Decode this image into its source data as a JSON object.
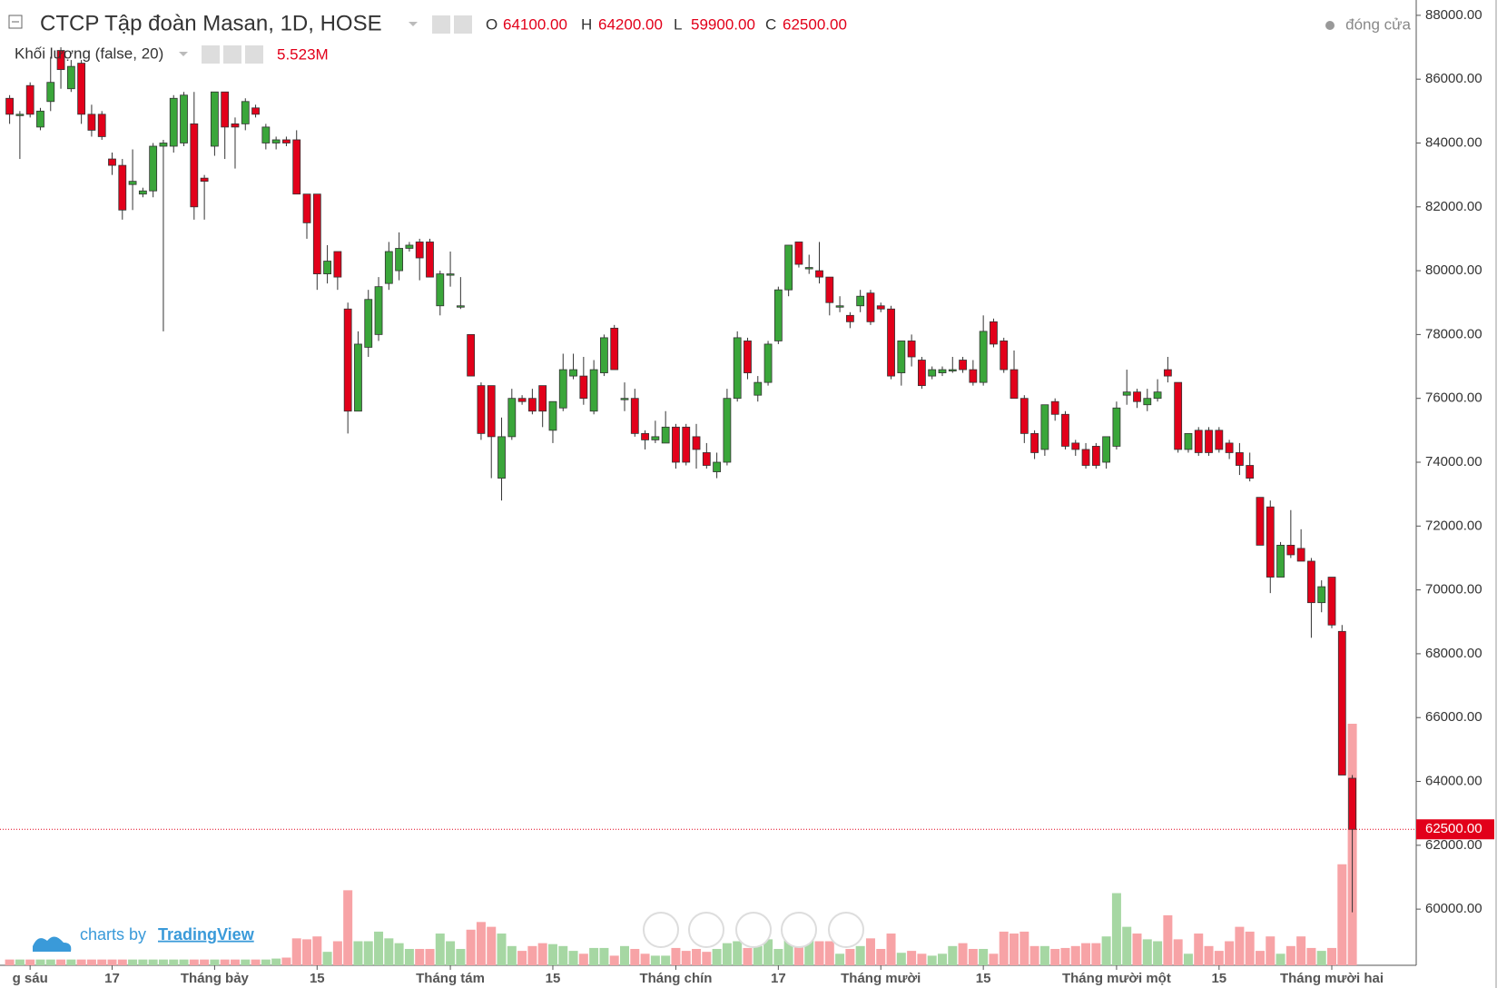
{
  "header": {
    "title": "CTCP Tập đoàn Masan, 1D, HOSE",
    "ohlc": [
      {
        "key": "O",
        "label": "64100.00"
      },
      {
        "key": "H",
        "label": "64200.00"
      },
      {
        "key": "L",
        "label": "59900.00"
      },
      {
        "key": "C",
        "label": "62500.00"
      }
    ],
    "volume_title": "Khối lượng (false, 20)",
    "volume_last": "5.523M",
    "status": "đóng cửa"
  },
  "branding": {
    "prefix": "charts by",
    "name": "TradingView"
  },
  "chart_data": {
    "type": "candlestick",
    "categories": [
      null,
      null,
      "g sáu",
      null,
      null,
      null,
      null,
      null,
      null,
      null,
      "17",
      null,
      null,
      null,
      null,
      null,
      null,
      null,
      null,
      null,
      "Tháng bảy",
      null,
      null,
      null,
      null,
      null,
      null,
      null,
      null,
      null,
      "15",
      null,
      null,
      null,
      null,
      null,
      null,
      null,
      null,
      null,
      null,
      null,
      null,
      "Tháng tám",
      null,
      null,
      null,
      null,
      null,
      null,
      null,
      null,
      null,
      "15",
      null,
      null,
      null,
      null,
      null,
      null,
      null,
      null,
      null,
      null,
      null,
      "Tháng chín",
      null,
      null,
      null,
      null,
      null,
      null,
      null,
      null,
      null,
      "17",
      null,
      null,
      null,
      null,
      null,
      null,
      null,
      null,
      null,
      "Tháng mười",
      null,
      null,
      null,
      null,
      null,
      null,
      null,
      null,
      null,
      "15",
      null,
      null,
      null,
      null,
      null,
      null,
      null,
      null,
      null,
      null,
      null,
      null,
      "Tháng mười một",
      null,
      null,
      null,
      null,
      null,
      null,
      null,
      null,
      null,
      "15",
      null,
      null,
      null,
      null,
      null,
      null,
      null,
      null,
      null,
      null,
      "Tháng mười hai",
      null,
      null
    ],
    "open": [
      85400,
      84900,
      85800,
      84500,
      85300,
      86900,
      85700,
      86500,
      84900,
      84900,
      83500,
      83300,
      82700,
      82400,
      82500,
      83900,
      83900,
      84000,
      84600,
      82900,
      83900,
      85600,
      84600,
      84600,
      85100,
      84000,
      84000,
      84100,
      84100,
      82400,
      82400,
      79900,
      80600,
      78800,
      75600,
      77600,
      78000,
      79600,
      80000,
      80700,
      80900,
      80900,
      78900,
      79900,
      78900,
      78000,
      76400,
      76400,
      73500,
      74800,
      76000,
      76000,
      76400,
      75000,
      75700,
      76700,
      76700,
      75600,
      76800,
      78200,
      76000,
      76000,
      74900,
      74700,
      74600,
      75100,
      75100,
      74800,
      74300,
      73700,
      74000,
      76000,
      77800,
      76100,
      76500,
      77800,
      79400,
      80900,
      80100,
      80000,
      79800,
      78900,
      78600,
      78900,
      79300,
      78900,
      78800,
      76800,
      77800,
      77200,
      76700,
      76800,
      76900,
      77200,
      76900,
      76500,
      78400,
      77800,
      76900,
      76000,
      74900,
      74400,
      75900,
      75500,
      74600,
      74400,
      74500,
      74000,
      74500,
      76100,
      76200,
      75800,
      76000,
      76900,
      76500,
      74400,
      75000,
      75000,
      75000,
      74600,
      74300,
      73900,
      72900,
      72600,
      70400,
      71400,
      71300,
      70900,
      69600,
      70400,
      68700,
      64100
    ],
    "high": [
      85500,
      85000,
      85900,
      85100,
      86700,
      87000,
      86600,
      86600,
      85200,
      85000,
      83700,
      83500,
      83800,
      82600,
      84000,
      84100,
      85500,
      85600,
      85600,
      83000,
      85600,
      85600,
      84800,
      85400,
      85200,
      84600,
      84200,
      84200,
      84400,
      82400,
      82400,
      80800,
      80600,
      79000,
      78100,
      79400,
      79800,
      80900,
      81200,
      80900,
      81000,
      81000,
      80000,
      80600,
      79800,
      78000,
      76500,
      76400,
      75400,
      76300,
      76100,
      76300,
      76400,
      75900,
      77400,
      77400,
      77300,
      77200,
      78000,
      78300,
      76500,
      76300,
      75000,
      75300,
      75600,
      75200,
      75200,
      75200,
      74600,
      74300,
      76300,
      78100,
      77900,
      76700,
      77800,
      79500,
      80800,
      80900,
      80500,
      80900,
      79800,
      79200,
      78700,
      79400,
      79400,
      79000,
      78900,
      77800,
      78000,
      77300,
      77000,
      77000,
      77300,
      77300,
      77200,
      78600,
      78500,
      77900,
      77500,
      76100,
      75000,
      75800,
      76000,
      75600,
      74700,
      74600,
      74600,
      74800,
      75900,
      76900,
      76300,
      76300,
      76600,
      77300,
      76500,
      74900,
      75100,
      75100,
      75100,
      74700,
      74600,
      74300,
      72900,
      72800,
      71500,
      72500,
      71900,
      71000,
      70300,
      70400,
      68900,
      64200
    ],
    "low": [
      84600,
      83500,
      84800,
      84400,
      85000,
      85700,
      85600,
      84600,
      84200,
      84100,
      83000,
      81600,
      81900,
      82300,
      82300,
      78100,
      83700,
      83900,
      81600,
      81600,
      83600,
      83500,
      83200,
      84400,
      84800,
      83800,
      83800,
      83900,
      82400,
      81000,
      79400,
      79600,
      79400,
      74900,
      75600,
      77300,
      77800,
      79400,
      79700,
      80600,
      79700,
      79800,
      78600,
      79500,
      78800,
      76700,
      74700,
      73500,
      72800,
      74700,
      75800,
      75500,
      75100,
      74600,
      75600,
      76600,
      75800,
      75500,
      76700,
      76900,
      75600,
      74800,
      74400,
      74600,
      74600,
      73800,
      73900,
      73800,
      73800,
      73500,
      73900,
      75900,
      76600,
      75900,
      76400,
      77700,
      79200,
      80100,
      79900,
      79600,
      78600,
      78700,
      78200,
      78700,
      78300,
      78700,
      76600,
      76400,
      77000,
      76300,
      76600,
      76700,
      76800,
      76800,
      76400,
      76400,
      77600,
      76800,
      76000,
      74600,
      74100,
      74200,
      75300,
      74400,
      74200,
      73800,
      73800,
      73800,
      74400,
      75800,
      75700,
      75600,
      75900,
      76500,
      74300,
      74300,
      74200,
      74200,
      74300,
      74100,
      73600,
      73400,
      71400,
      69900,
      70400,
      71000,
      70900,
      68500,
      69300,
      68800,
      64200,
      59900
    ],
    "close": [
      84900,
      84900,
      84900,
      85000,
      85900,
      86300,
      86400,
      84900,
      84400,
      84200,
      83300,
      81900,
      82800,
      82500,
      83900,
      84000,
      85400,
      85500,
      82000,
      82800,
      85600,
      84500,
      84500,
      85300,
      84900,
      84500,
      84100,
      84000,
      82400,
      81500,
      79900,
      80300,
      79800,
      75600,
      77700,
      79100,
      79500,
      80600,
      80700,
      80800,
      80400,
      79800,
      79900,
      79900,
      78900,
      76700,
      74900,
      74800,
      74800,
      76000,
      75900,
      75600,
      75600,
      75900,
      76900,
      76900,
      76000,
      76900,
      77900,
      76900,
      76000,
      74900,
      74700,
      74800,
      75100,
      74000,
      74000,
      74400,
      73900,
      74000,
      76000,
      77900,
      76800,
      76500,
      77700,
      79400,
      80800,
      80200,
      80100,
      79800,
      79000,
      78900,
      78400,
      79200,
      78400,
      78800,
      76700,
      77800,
      77300,
      76400,
      76900,
      76900,
      76900,
      76900,
      76500,
      78100,
      77700,
      76900,
      76000,
      74900,
      74300,
      75800,
      75500,
      74500,
      74400,
      73900,
      73900,
      74800,
      75700,
      76200,
      75900,
      76000,
      76200,
      76700,
      74400,
      74900,
      74300,
      74300,
      74400,
      74300,
      73900,
      73500,
      71400,
      70400,
      71400,
      71100,
      70900,
      69600,
      70100,
      68900,
      64200,
      62500
    ],
    "volume": [
      132000,
      132000,
      132000,
      132000,
      132000,
      132000,
      132000,
      132000,
      132000,
      132000,
      132000,
      132000,
      132000,
      132000,
      132000,
      132000,
      132000,
      132000,
      132000,
      132000,
      132000,
      132000,
      132000,
      132000,
      132000,
      132000,
      154000,
      176000,
      616000,
      594000,
      660000,
      308000,
      550000,
      1716000,
      550000,
      550000,
      770000,
      616000,
      506000,
      374000,
      374000,
      374000,
      726000,
      550000,
      374000,
      814000,
      990000,
      880000,
      726000,
      440000,
      330000,
      440000,
      506000,
      484000,
      440000,
      330000,
      264000,
      396000,
      396000,
      220000,
      440000,
      374000,
      264000,
      220000,
      220000,
      396000,
      330000,
      374000,
      308000,
      374000,
      506000,
      550000,
      396000,
      440000,
      594000,
      374000,
      880000,
      770000,
      660000,
      550000,
      550000,
      264000,
      374000,
      440000,
      616000,
      374000,
      726000,
      286000,
      330000,
      264000,
      220000,
      264000,
      440000,
      506000,
      374000,
      374000,
      264000,
      770000,
      726000,
      770000,
      440000,
      440000,
      374000,
      396000,
      440000,
      506000,
      506000,
      660000,
      1650000,
      880000,
      726000,
      594000,
      550000,
      1144000,
      594000,
      264000,
      726000,
      440000,
      330000,
      550000,
      880000,
      770000,
      330000,
      660000,
      264000,
      440000,
      660000,
      396000,
      330000,
      396000,
      2310000,
      5523000
    ],
    "up_color": "#3aa63a",
    "down_color": "#e2001a",
    "volume_up_color": "#a6d7a3",
    "volume_down_color": "#f7a3a6",
    "ylim": [
      58240,
      88480
    ],
    "yticks": [
      {
        "value": 60000,
        "label": "60000.00"
      },
      {
        "value": 62000,
        "label": "62000.00"
      },
      {
        "value": 64000,
        "label": "64000.00"
      },
      {
        "value": 66000,
        "label": "66000.00"
      },
      {
        "value": 68000,
        "label": "68000.00"
      },
      {
        "value": 70000,
        "label": "70000.00"
      },
      {
        "value": 72000,
        "label": "72000.00"
      },
      {
        "value": 74000,
        "label": "74000.00"
      },
      {
        "value": 76000,
        "label": "76000.00"
      },
      {
        "value": 78000,
        "label": "78000.00"
      },
      {
        "value": 80000,
        "label": "80000.00"
      },
      {
        "value": 82000,
        "label": "82000.00"
      },
      {
        "value": 84000,
        "label": "84000.00"
      },
      {
        "value": 86000,
        "label": "86000.00"
      },
      {
        "value": 88000,
        "label": "88000.00"
      }
    ],
    "last_price": {
      "value": 62500,
      "label": "62500.00"
    },
    "grid": false
  }
}
